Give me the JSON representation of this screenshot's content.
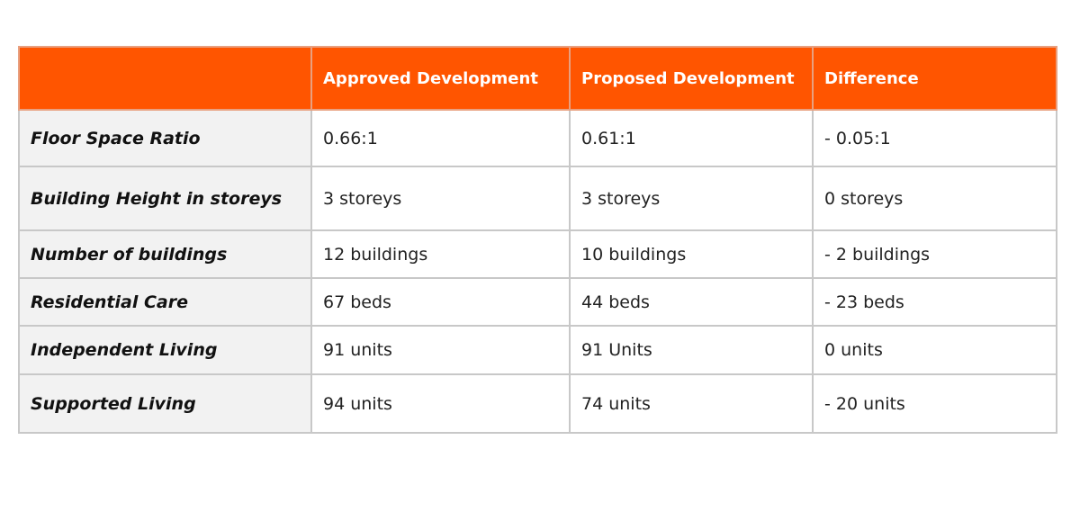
{
  "colors": {
    "accent": "#FF5500",
    "label_bg": "#f2f2f2",
    "border": "#c8c8c8"
  },
  "table": {
    "headers": [
      "",
      "Approved Development",
      "Proposed Development",
      "Difference"
    ],
    "rows": [
      [
        "Floor Space Ratio",
        "0.66:1",
        "0.61:1",
        "- 0.05:1"
      ],
      [
        "Building Height in storeys",
        "3 storeys",
        "3 storeys",
        "0 storeys"
      ],
      [
        "Number of buildings",
        "12 buildings",
        "10 buildings",
        "- 2 buildings"
      ],
      [
        "Residential Care",
        "67 beds",
        "44 beds",
        "- 23 beds"
      ],
      [
        "Independent Living",
        "91 units",
        "91 Units",
        "0 units"
      ],
      [
        "Supported Living",
        "94 units",
        "74 units",
        "- 20 units"
      ]
    ]
  }
}
